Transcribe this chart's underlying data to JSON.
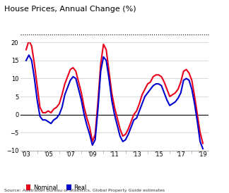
{
  "title": "House Prices, Annual Change (%)",
  "source": "Source: Australian Bureau of Statistics, Global Property Guide estimates",
  "ylim": [
    -10,
    20
  ],
  "yticks": [
    -10,
    -5,
    0,
    5,
    10,
    15,
    20
  ],
  "xtick_years": [
    2003,
    2005,
    2007,
    2009,
    2011,
    2013,
    2015,
    2017,
    2019
  ],
  "xtick_labels": [
    "'03",
    "'05",
    "'07",
    "'09",
    "'11",
    "'13",
    "'15",
    "'17",
    "'19"
  ],
  "nominal_color": "#e8001c",
  "real_color": "#0000cc",
  "legend_nominal": "Nominal",
  "legend_real": "Real",
  "nominal_x": [
    2003.0,
    2003.25,
    2003.5,
    2003.75,
    2004.0,
    2004.25,
    2004.5,
    2004.75,
    2005.0,
    2005.25,
    2005.5,
    2005.75,
    2006.0,
    2006.25,
    2006.5,
    2006.75,
    2007.0,
    2007.25,
    2007.5,
    2007.75,
    2008.0,
    2008.25,
    2008.5,
    2008.75,
    2009.0,
    2009.25,
    2009.5,
    2009.75,
    2010.0,
    2010.25,
    2010.5,
    2010.75,
    2011.0,
    2011.25,
    2011.5,
    2011.75,
    2012.0,
    2012.25,
    2012.5,
    2012.75,
    2013.0,
    2013.25,
    2013.5,
    2013.75,
    2014.0,
    2014.25,
    2014.5,
    2014.75,
    2015.0,
    2015.25,
    2015.5,
    2015.75,
    2016.0,
    2016.25,
    2016.5,
    2016.75,
    2017.0,
    2017.25,
    2017.5,
    2017.75,
    2018.0,
    2018.25,
    2018.5,
    2018.75,
    2019.0
  ],
  "nominal_y": [
    18.0,
    20.5,
    19.0,
    14.0,
    8.0,
    2.0,
    0.5,
    0.5,
    1.0,
    0.5,
    1.5,
    2.0,
    3.0,
    5.5,
    8.5,
    10.5,
    12.5,
    13.0,
    12.0,
    9.0,
    6.0,
    2.0,
    -1.0,
    -3.5,
    -7.5,
    -5.5,
    3.5,
    14.0,
    19.5,
    18.0,
    12.0,
    6.0,
    2.0,
    -1.0,
    -4.0,
    -6.0,
    -5.5,
    -4.0,
    -2.0,
    0.0,
    1.0,
    3.0,
    5.5,
    7.0,
    8.5,
    9.0,
    10.5,
    11.0,
    11.0,
    10.5,
    9.0,
    7.0,
    5.0,
    5.5,
    6.0,
    7.0,
    9.0,
    12.0,
    12.5,
    11.5,
    9.5,
    5.0,
    0.0,
    -5.0,
    -8.0
  ],
  "real_x": [
    2003.0,
    2003.25,
    2003.5,
    2003.75,
    2004.0,
    2004.25,
    2004.5,
    2004.75,
    2005.0,
    2005.25,
    2005.5,
    2005.75,
    2006.0,
    2006.25,
    2006.5,
    2006.75,
    2007.0,
    2007.25,
    2007.5,
    2007.75,
    2008.0,
    2008.25,
    2008.5,
    2008.75,
    2009.0,
    2009.25,
    2009.5,
    2009.75,
    2010.0,
    2010.25,
    2010.5,
    2010.75,
    2011.0,
    2011.25,
    2011.5,
    2011.75,
    2012.0,
    2012.25,
    2012.5,
    2012.75,
    2013.0,
    2013.25,
    2013.5,
    2013.75,
    2014.0,
    2014.25,
    2014.5,
    2014.75,
    2015.0,
    2015.25,
    2015.5,
    2015.75,
    2016.0,
    2016.25,
    2016.5,
    2016.75,
    2017.0,
    2017.25,
    2017.5,
    2017.75,
    2018.0,
    2018.25,
    2018.5,
    2018.75,
    2019.0
  ],
  "real_y": [
    15.0,
    16.5,
    15.0,
    10.0,
    4.0,
    -0.5,
    -1.5,
    -1.5,
    -2.0,
    -2.5,
    -1.5,
    -1.0,
    0.0,
    2.0,
    5.5,
    7.5,
    9.5,
    10.5,
    10.0,
    7.0,
    4.0,
    0.0,
    -3.0,
    -5.5,
    -8.5,
    -7.0,
    1.5,
    12.0,
    16.0,
    15.0,
    10.0,
    4.0,
    0.0,
    -3.0,
    -6.0,
    -7.5,
    -7.0,
    -5.5,
    -3.5,
    -1.5,
    -1.0,
    1.0,
    3.0,
    5.0,
    6.0,
    7.0,
    8.0,
    8.5,
    8.5,
    8.0,
    6.0,
    4.0,
    2.5,
    3.0,
    3.5,
    4.5,
    6.0,
    9.5,
    10.0,
    9.5,
    7.0,
    3.0,
    -2.0,
    -7.5,
    -9.5
  ]
}
